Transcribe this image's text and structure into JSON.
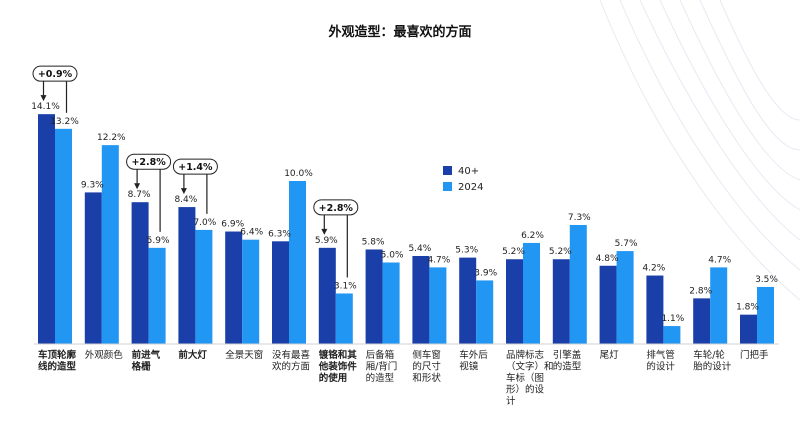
{
  "title": "外观造型：最喜欢的方面",
  "colors": {
    "series_a": "#1a3fa8",
    "series_b": "#2196f3"
  },
  "chart_data": {
    "type": "bar",
    "title": "外观造型：最喜欢的方面",
    "categories": [
      [
        "车顶轮廓",
        "线的造型"
      ],
      [
        "外观颜色"
      ],
      [
        "前进气",
        "格栅"
      ],
      [
        "前大灯"
      ],
      [
        "全景天窗"
      ],
      [
        "没有最喜",
        "欢的方面"
      ],
      [
        "镀铬和其",
        "他装饰件",
        "的使用"
      ],
      [
        "后备箱",
        "厢/背门",
        "的造型"
      ],
      [
        "侧车窗",
        "的尺寸",
        "和形状"
      ],
      [
        "车外后",
        "视镜"
      ],
      [
        "品牌标志",
        "（文字）和",
        "车标（图",
        "形）的设",
        "计"
      ],
      [
        "引擎盖",
        "的造型"
      ],
      [
        "尾灯"
      ],
      [
        "排气管",
        "的设计"
      ],
      [
        "车轮/轮",
        "胎的设计"
      ],
      [
        "门把手"
      ]
    ],
    "bold_categories": [
      0,
      2,
      3,
      6
    ],
    "series": [
      {
        "name": "40+",
        "values": [
          14.1,
          9.3,
          8.7,
          8.4,
          6.9,
          6.3,
          5.9,
          5.8,
          5.4,
          5.3,
          5.2,
          5.2,
          4.8,
          4.2,
          2.8,
          1.8
        ]
      },
      {
        "name": "2024",
        "values": [
          13.2,
          12.2,
          5.9,
          7.0,
          6.4,
          10.0,
          3.1,
          5.0,
          4.7,
          3.9,
          6.2,
          7.3,
          5.7,
          1.1,
          4.7,
          3.5
        ]
      }
    ],
    "value_labels_a": [
      "14.1%",
      "9.3%",
      "8.7%",
      "8.4%",
      "6.9%",
      "6.3%",
      "5.9%",
      "5.8%",
      "5.4%",
      "5.3%",
      "5.2%",
      "5.2%",
      "4.8%",
      "4.2%",
      "2.8%",
      "1.8%"
    ],
    "value_labels_b": [
      "13.2%",
      "12.2%",
      "5.9%",
      "7.0%",
      "6.4%",
      "10.0%",
      "3.1%",
      "5.0%",
      "4.7%",
      "3.9%",
      "6.2%",
      "7.3%",
      "5.7%",
      "1.1%",
      "4.7%",
      "3.5%"
    ],
    "annotations": [
      {
        "category_index": 0,
        "text": "+0.9%"
      },
      {
        "category_index": 2,
        "text": "+2.8%"
      },
      {
        "category_index": 3,
        "text": "+1.4%"
      },
      {
        "category_index": 6,
        "text": "+2.8%"
      }
    ],
    "legend_position": "center-right",
    "ylim": [
      0,
      15
    ],
    "grid": false
  }
}
